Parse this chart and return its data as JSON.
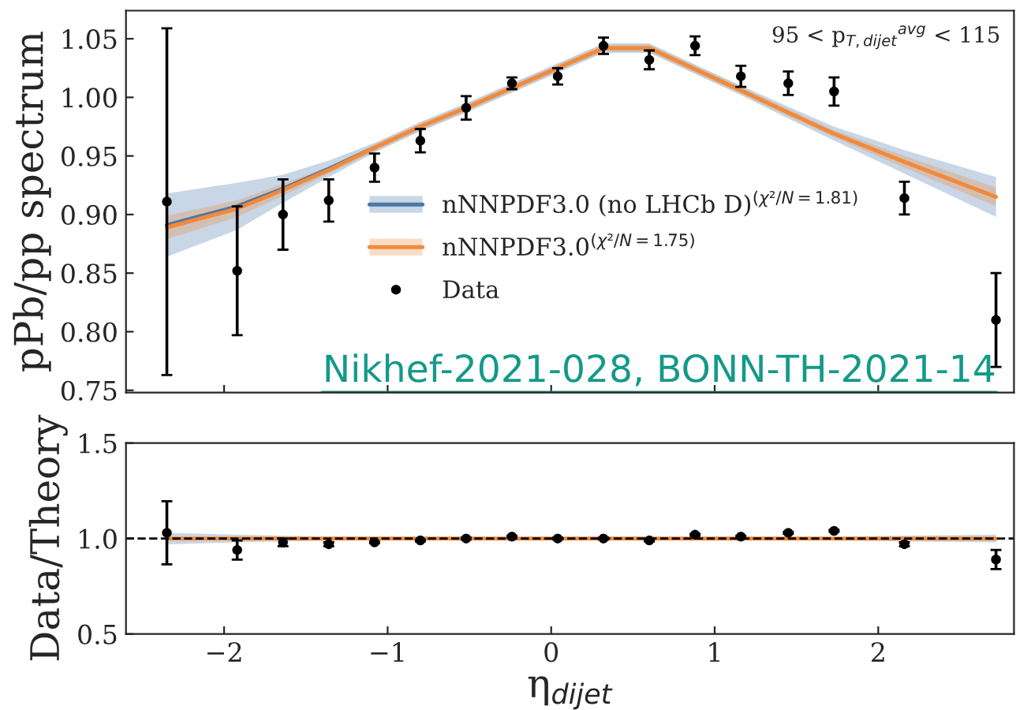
{
  "chart_data": [
    {
      "type": "line",
      "ylabel": "pPb/pp spectrum",
      "xlim": [
        -2.6,
        2.83
      ],
      "ylim": [
        0.748,
        1.074
      ],
      "yticks": [
        {
          "value": 0.75,
          "label": "0.75"
        },
        {
          "value": 0.8,
          "label": "0.80"
        },
        {
          "value": 0.85,
          "label": "0.85"
        },
        {
          "value": 0.9,
          "label": "0.90"
        },
        {
          "value": 0.95,
          "label": "0.95"
        },
        {
          "value": 1.0,
          "label": "1.00"
        },
        {
          "value": 1.05,
          "label": "1.05"
        }
      ],
      "xticks": [
        -2,
        -1,
        0,
        1,
        2
      ],
      "tick_labels": "y",
      "legend": "center",
      "x": [
        -2.35,
        -1.92,
        -1.64,
        -1.36,
        -1.08,
        -0.8,
        -0.52,
        -0.24,
        0.04,
        0.32,
        0.6,
        0.88,
        1.16,
        1.45,
        1.73,
        2.16,
        2.72
      ],
      "annotations": [
        {
          "text": "95 < p$_{T,dijet}$$^{avg}$ < 115"
        },
        {
          "text": "Nikhef-2021-028, BONN-TH-2021-14"
        }
      ],
      "series": [
        {
          "name": "nNNPDF3.0 (no LHCb D)$^{(χ²/N=1.81)}$",
          "color": "#4a78a8",
          "values": [
            0.891,
            0.907,
            0.922,
            0.939,
            0.957,
            null,
            null,
            null,
            null,
            null,
            null,
            null,
            null,
            null,
            null,
            null,
            null
          ],
          "lower": [
            0.864,
            0.887,
            0.91,
            0.932,
            0.953,
            0.971,
            0.987,
            1.004,
            1.021,
            1.038,
            1.038,
            1.02,
            1.002,
            0.982,
            0.963,
            0.935,
            0.898
          ],
          "upper": [
            0.918,
            0.927,
            0.934,
            0.946,
            0.961,
            0.979,
            0.995,
            1.012,
            1.029,
            1.046,
            1.046,
            1.028,
            1.01,
            0.992,
            0.975,
            0.955,
            0.932
          ]
        },
        {
          "name": "nNNPDF3.0$^{(χ²/N=1.75)}$",
          "color": "#f08a3c",
          "values": [
            0.889,
            0.905,
            0.921,
            0.938,
            0.957,
            0.975,
            0.991,
            1.008,
            1.025,
            1.042,
            1.042,
            1.024,
            1.006,
            0.987,
            0.969,
            0.945,
            0.915
          ],
          "lower": [
            0.879,
            0.898,
            0.916,
            0.935,
            0.954,
            0.972,
            0.988,
            1.005,
            1.022,
            1.039,
            1.039,
            1.021,
            1.003,
            0.984,
            0.966,
            0.94,
            0.907
          ],
          "upper": [
            0.899,
            0.912,
            0.926,
            0.941,
            0.96,
            0.978,
            0.994,
            1.011,
            1.028,
            1.045,
            1.045,
            1.027,
            1.009,
            0.99,
            0.972,
            0.95,
            0.923
          ]
        },
        {
          "name": "Data",
          "type": "scatter",
          "color": "#000000",
          "marker": "circle",
          "values": [
            0.911,
            0.852,
            0.9,
            0.912,
            0.94,
            0.963,
            0.991,
            1.012,
            1.018,
            1.044,
            1.032,
            1.044,
            1.018,
            1.012,
            1.005,
            0.914,
            0.81
          ],
          "errors": [
            0.148,
            0.055,
            0.03,
            0.018,
            0.012,
            0.01,
            0.01,
            0.005,
            0.007,
            0.007,
            0.008,
            0.008,
            0.009,
            0.01,
            0.012,
            0.014,
            0.04
          ]
        }
      ]
    },
    {
      "type": "line",
      "ylabel": "Data/Theory",
      "xlabel": "η$_{dijet}$",
      "xlim": [
        -2.6,
        2.83
      ],
      "ylim": [
        0.5,
        1.5
      ],
      "yticks": [
        {
          "value": 0.5,
          "label": "0.5"
        },
        {
          "value": 1.0,
          "label": "1.0"
        },
        {
          "value": 1.5,
          "label": "1.5"
        }
      ],
      "xticks": [
        {
          "value": -2,
          "label": "−2"
        },
        {
          "value": -1,
          "label": "−1"
        },
        0,
        1,
        2
      ],
      "x": [
        -2.35,
        -1.92,
        -1.64,
        -1.36,
        -1.08,
        -0.8,
        -0.52,
        -0.24,
        0.04,
        0.32,
        0.6,
        0.88,
        1.16,
        1.45,
        1.73,
        2.16,
        2.72
      ],
      "ref_lines": [
        {
          "axis": "y",
          "value": 1.0,
          "color": "#000000",
          "line_style": "dashed"
        }
      ],
      "series": [
        {
          "color": "#4a78a8",
          "values": [
            null,
            null,
            null,
            null,
            null,
            null,
            null,
            null,
            null,
            null,
            null,
            null,
            null,
            null,
            null,
            null,
            null
          ],
          "lower": [
            0.97,
            0.98,
            0.985,
            0.99,
            0.99,
            0.99,
            0.99,
            0.99,
            0.99,
            0.99,
            0.99,
            0.99,
            0.99,
            0.99,
            0.99,
            0.985,
            0.98
          ],
          "upper": [
            1.03,
            1.02,
            1.015,
            1.01,
            1.01,
            1.01,
            1.01,
            1.01,
            1.01,
            1.01,
            1.01,
            1.01,
            1.01,
            1.01,
            1.01,
            1.015,
            1.02
          ]
        },
        {
          "color": "#f08a3c",
          "values": [
            1,
            1,
            1,
            1,
            1,
            1,
            1,
            1,
            1,
            1,
            1,
            1,
            1,
            1,
            1,
            1,
            1
          ]
        },
        {
          "type": "scatter",
          "color": "#000000",
          "marker": "circle",
          "values": [
            1.03,
            0.94,
            0.98,
            0.97,
            0.98,
            0.99,
            1.0,
            1.01,
            1.0,
            1.0,
            0.99,
            1.02,
            1.01,
            1.03,
            1.04,
            0.97,
            0.89
          ],
          "errors": [
            0.165,
            0.05,
            0.02,
            0.01,
            0.005,
            0.005,
            0.005,
            0.005,
            0.005,
            0.005,
            0.005,
            0.005,
            0.005,
            0.005,
            0.005,
            0.01,
            0.05
          ]
        }
      ]
    }
  ]
}
